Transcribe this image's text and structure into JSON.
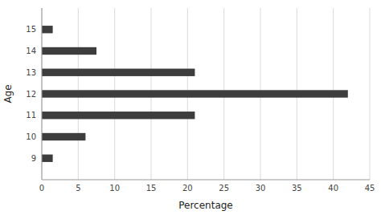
{
  "chart_data": {
    "type": "bar",
    "orientation": "horizontal",
    "xlabel": "Percentage",
    "ylabel": "Age",
    "categories": [
      9,
      10,
      11,
      12,
      13,
      14,
      15
    ],
    "values": [
      1.5,
      6.0,
      21.0,
      42.0,
      21.0,
      7.5,
      1.5
    ],
    "color": "#3d3d3d",
    "xlim": [
      0,
      45
    ],
    "xticks": [
      0,
      5,
      10,
      15,
      20,
      25,
      30,
      35,
      40,
      45
    ],
    "ylim": [
      8.0,
      16.0
    ],
    "yticks": [
      9,
      10,
      11,
      12,
      13,
      14,
      15
    ],
    "grid": true
  }
}
